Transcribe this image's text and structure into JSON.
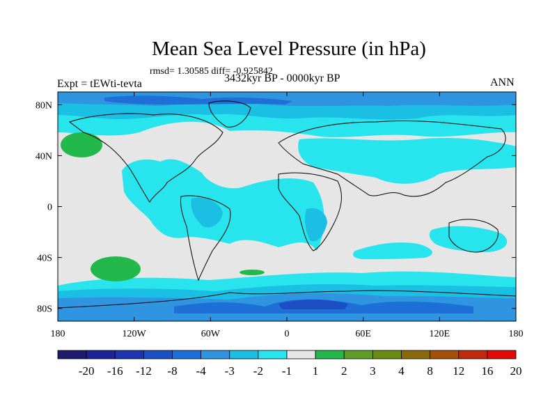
{
  "title": "Mean Sea Level Pressure (in hPa)",
  "subtitle": "rmsd= 1.30585  diff= -0.925842",
  "left_label": "Expt = tEWti-tevta",
  "center_label": "3432kyr BP - 0000kyr BP",
  "right_label": "ANN",
  "map": {
    "projection": "cylindrical-equidistant",
    "lon_range": [
      -180,
      180
    ],
    "lat_range": [
      -90,
      90
    ],
    "y_ticks": [
      {
        "lat": 80,
        "label": "80N"
      },
      {
        "lat": 40,
        "label": "40N"
      },
      {
        "lat": 0,
        "label": "0"
      },
      {
        "lat": -40,
        "label": "40S"
      },
      {
        "lat": -80,
        "label": "80S"
      }
    ],
    "x_ticks": [
      {
        "lon": -180,
        "label": "180"
      },
      {
        "lon": -120,
        "label": "120W"
      },
      {
        "lon": -60,
        "label": "60W"
      },
      {
        "lon": 0,
        "label": "0"
      },
      {
        "lon": 60,
        "label": "60E"
      },
      {
        "lon": 120,
        "label": "120E"
      },
      {
        "lon": 180,
        "label": "180"
      }
    ],
    "background_color": "#e6e6e6"
  },
  "colorbar": {
    "colors": [
      "#1e1a6e",
      "#1a2496",
      "#1d34b0",
      "#1d4fc4",
      "#1e6fd6",
      "#2f95e0",
      "#1bbfe3",
      "#28e4ec",
      "#e6e6e6",
      "#23b84b",
      "#5e9e26",
      "#6a8a12",
      "#8a6a08",
      "#a55008",
      "#c22a10",
      "#e00a0a"
    ],
    "labels": [
      "-20",
      "-16",
      "-12",
      "-8",
      "-4",
      "-3",
      "-2",
      "-1",
      "1",
      "2",
      "3",
      "4",
      "8",
      "12",
      "16",
      "20"
    ]
  }
}
